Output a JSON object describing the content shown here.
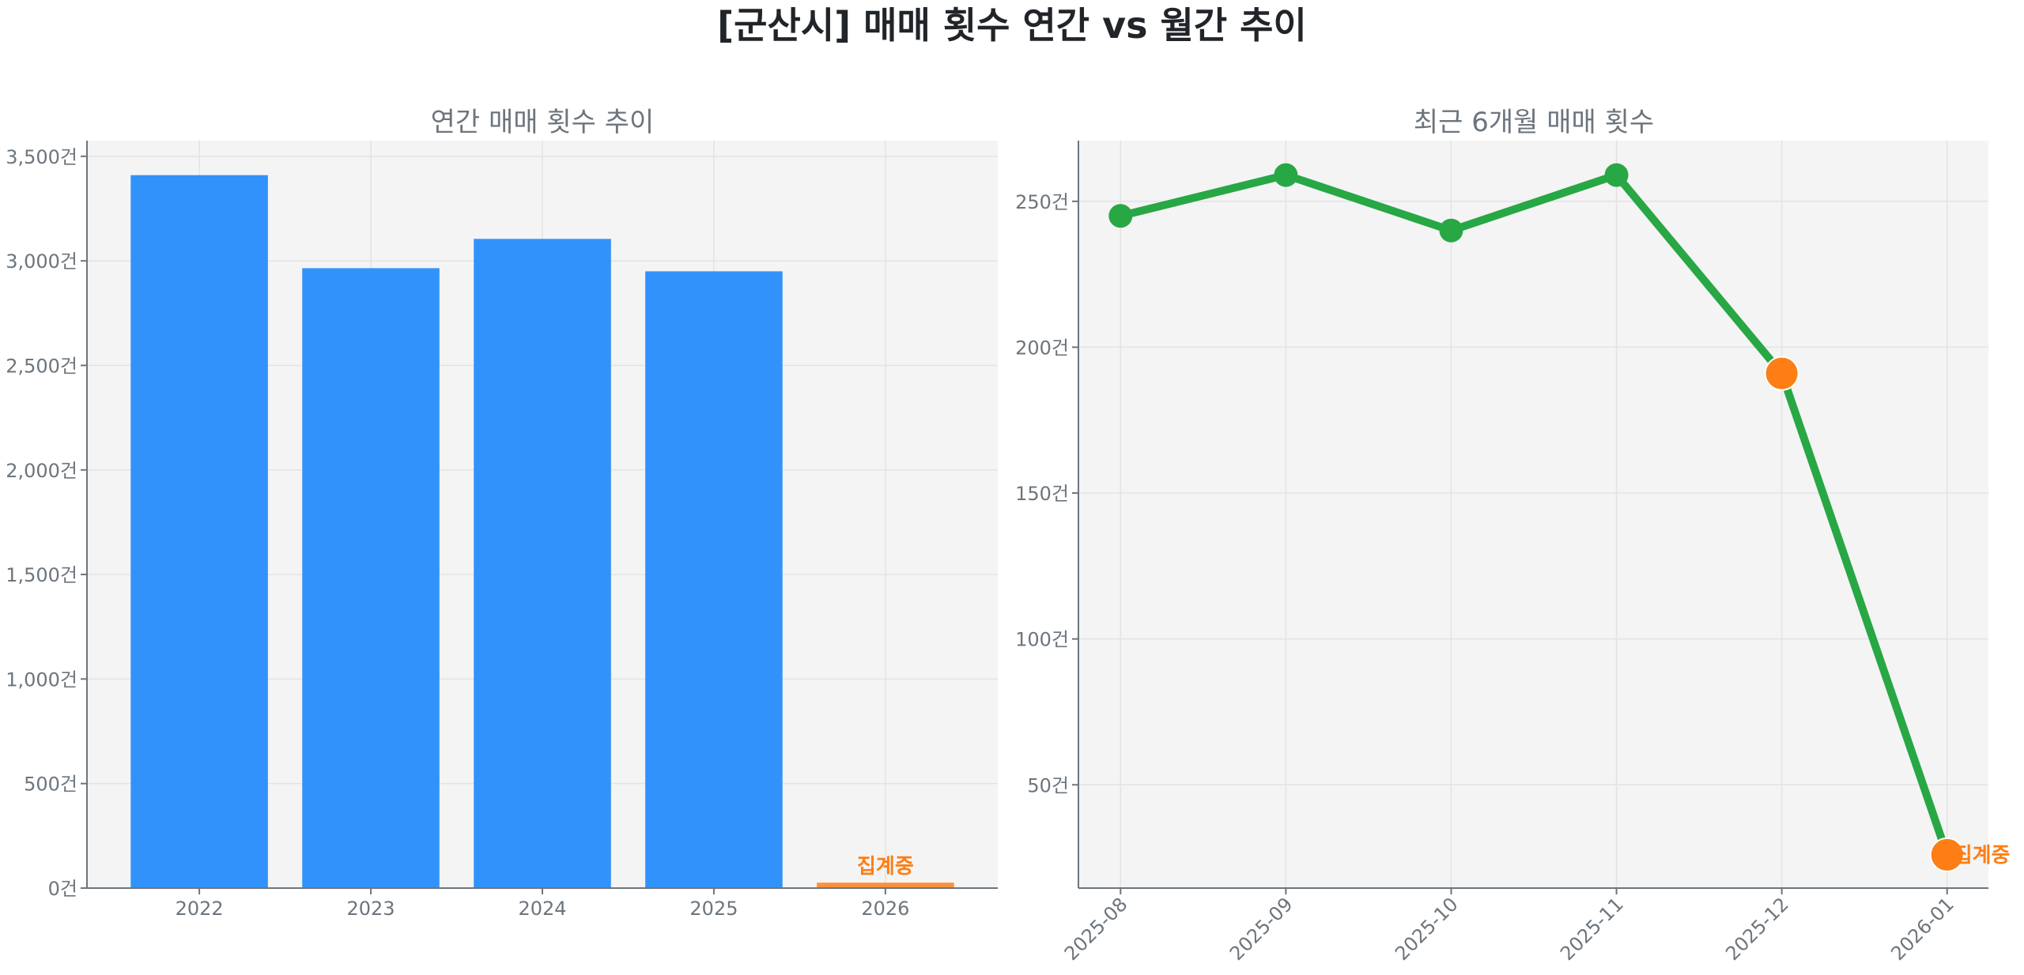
{
  "figure": {
    "suptitle": "[군산시] 매매 횟수 연간 vs 월간 추이"
  },
  "colors": {
    "bar": "#3192fb",
    "bar_partial": "#fd913a",
    "line": "#28a745",
    "highlight": "#fd7e14",
    "text": "#6c757d",
    "title": "#212529",
    "plot_bg": "#f4f4f4"
  },
  "chart_data": [
    {
      "type": "bar",
      "title": "연간 매매 횟수 추이",
      "xlabel": "",
      "ylabel": "",
      "categories": [
        "2022",
        "2023",
        "2024",
        "2025",
        "2026"
      ],
      "values": [
        3410,
        2965,
        3105,
        2950,
        26
      ],
      "partial": [
        false,
        false,
        false,
        false,
        true
      ],
      "annotations": [
        {
          "category": "2026",
          "text": "집계중"
        }
      ],
      "yticks": [
        0,
        500,
        1000,
        1500,
        2000,
        2500,
        3000,
        3500
      ],
      "ytick_labels": [
        "0건",
        "500건",
        "1,000건",
        "1,500건",
        "2,000건",
        "2,500건",
        "3,000건",
        "3,500건"
      ],
      "ylim": [
        0,
        3575
      ],
      "grid": true,
      "legend": null
    },
    {
      "type": "line",
      "title": "최근 6개월 매매 횟수",
      "xlabel": "",
      "ylabel": "",
      "categories": [
        "2025-08",
        "2025-09",
        "2025-10",
        "2025-11",
        "2025-12",
        "2026-01"
      ],
      "values": [
        245,
        259,
        240,
        259,
        191,
        26
      ],
      "highlighted": [
        false,
        false,
        false,
        false,
        true,
        true
      ],
      "annotations": [
        {
          "category": "2026-01",
          "text": "집계중"
        }
      ],
      "yticks": [
        50,
        100,
        150,
        200,
        250
      ],
      "ytick_labels": [
        "50건",
        "100건",
        "150건",
        "200건",
        "250건"
      ],
      "ylim": [
        14.6,
        270.8
      ],
      "xtick_rotation": 45,
      "grid": true,
      "legend": null
    }
  ]
}
